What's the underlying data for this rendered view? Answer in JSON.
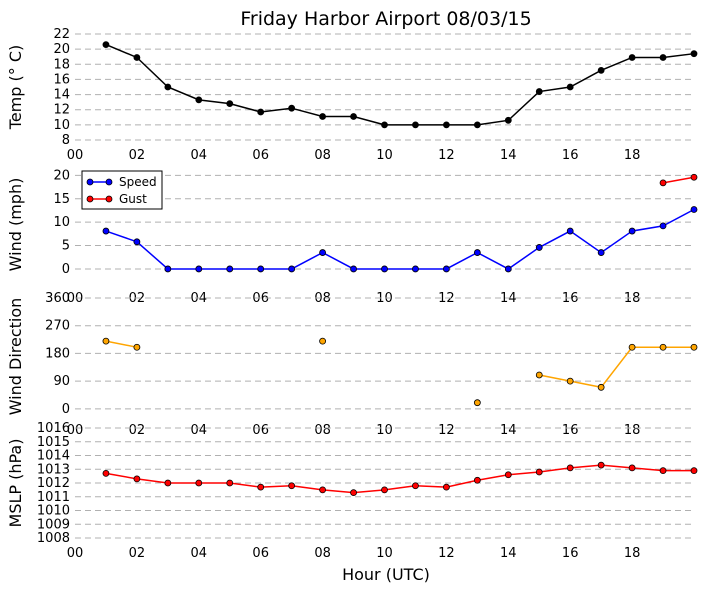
{
  "colors": {
    "temp": "#000000",
    "speed": "#0000ff",
    "gust": "#ff0000",
    "direction_line": "#ffa500",
    "direction_marker": "#ffa500",
    "mslp": "#ff0000",
    "grid": "#b0b0b0"
  },
  "chart_data": {
    "type": "line",
    "title": "Friday Harbor Airport 08/03/15",
    "xlabel": "Hour (UTC)",
    "x": [
      1,
      2,
      3,
      4,
      5,
      6,
      7,
      8,
      9,
      10,
      11,
      12,
      13,
      14,
      15,
      16,
      17,
      18,
      19,
      20
    ],
    "xlim": [
      0,
      20
    ],
    "x_ticks": [
      0,
      2,
      4,
      6,
      8,
      10,
      12,
      14,
      16,
      18
    ],
    "x_tick_labels": [
      "00",
      "02",
      "04",
      "06",
      "08",
      "10",
      "12",
      "14",
      "16",
      "18"
    ],
    "grid": "horizontal dashed",
    "panels": [
      {
        "ylabel": "Temp ($^\\circ$C)",
        "ylabel_display": "Temp (° C)",
        "ylim": [
          8,
          22
        ],
        "y_ticks": [
          8,
          10,
          12,
          14,
          16,
          18,
          20,
          22
        ],
        "series": [
          {
            "values": [
              20.6,
              18.9,
              15.0,
              13.3,
              12.8,
              11.7,
              12.2,
              11.1,
              11.1,
              10.0,
              10.0,
              10.0,
              10.0,
              10.6,
              14.4,
              15.0,
              17.2,
              18.9,
              18.9,
              19.4
            ]
          }
        ]
      },
      {
        "ylabel": "Wind (mph)",
        "ylim": [
          -3,
          22
        ],
        "y_ticks": [
          0,
          5,
          10,
          15,
          20
        ],
        "legend": "top-left",
        "series": [
          {
            "name": "Speed",
            "values": [
              8.1,
              5.8,
              0,
              0,
              0,
              0,
              0,
              3.5,
              0,
              0,
              0,
              0,
              3.5,
              0,
              4.6,
              8.1,
              3.5,
              8.1,
              9.2,
              12.7
            ]
          },
          {
            "name": "Gust",
            "values": [
              null,
              null,
              null,
              null,
              null,
              null,
              null,
              null,
              null,
              null,
              null,
              null,
              null,
              null,
              null,
              null,
              null,
              null,
              18.4,
              19.6
            ]
          }
        ]
      },
      {
        "ylabel": "Wind Direction",
        "ylim": [
          -20,
          360
        ],
        "y_ticks": [
          0,
          90,
          180,
          270,
          360
        ],
        "series": [
          {
            "values": [
              220,
              200,
              null,
              null,
              null,
              null,
              null,
              220,
              null,
              null,
              null,
              null,
              20,
              null,
              110,
              90,
              70,
              200,
              200,
              200
            ]
          }
        ]
      },
      {
        "ylabel": "MSLP (hPa)",
        "ylim": [
          1008,
          1016
        ],
        "y_ticks": [
          1008,
          1009,
          1010,
          1011,
          1012,
          1013,
          1014,
          1015,
          1016
        ],
        "series": [
          {
            "values": [
              1012.7,
              1012.3,
              1012.0,
              1012.0,
              1012.0,
              1011.7,
              1011.8,
              1011.5,
              1011.3,
              1011.5,
              1011.8,
              1011.7,
              1012.2,
              1012.6,
              1012.8,
              1013.1,
              1013.3,
              1013.1,
              1012.9,
              1012.9
            ]
          }
        ]
      }
    ]
  }
}
